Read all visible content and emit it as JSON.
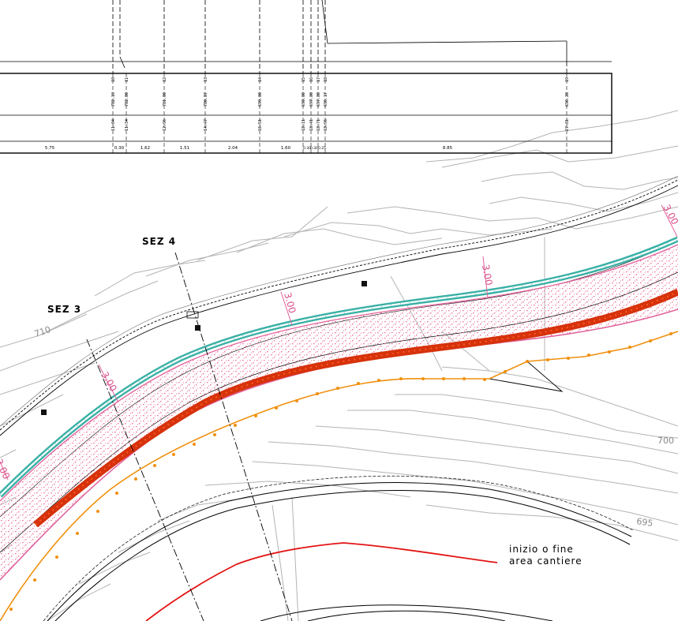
{
  "table": {
    "sections": [
      {
        "num": "10",
        "elev": "702.19",
        "prog": "11.04"
      },
      {
        "num": "11",
        "elev": "702.00",
        "prog": "11.34"
      },
      {
        "num": "12",
        "elev": "701.00",
        "prog": "12.96"
      },
      {
        "num": "13",
        "elev": "700.07",
        "prog": "14.47"
      },
      {
        "num": "14",
        "elev": "699.00",
        "prog": "16.51"
      },
      {
        "num": "15",
        "elev": "698.00",
        "prog": "18.11"
      },
      {
        "num": "16",
        "elev": "697.80",
        "prog": "18.41"
      },
      {
        "num": "17",
        "elev": "697.80",
        "prog": "18.71"
      },
      {
        "num": "18",
        "elev": "696.17",
        "prog": "18.96"
      },
      {
        "num": "19",
        "elev": "696.28",
        "prog": "27.81"
      }
    ],
    "distances": [
      "5.75",
      "0.30",
      "1.62",
      "1.51",
      "2.04",
      "1.60",
      "0.30",
      "0.30",
      "0.25",
      "8.85"
    ]
  },
  "labels": {
    "sez4": "SEZ 4",
    "sez3": "SEZ 3",
    "contour_710": "710",
    "contour_700": "700",
    "contour_695": "695",
    "dim1": "3.00",
    "dim2": "3.00",
    "dim3": "3.00",
    "dim4": "3.00",
    "dim5": "3.00",
    "legend_line1": "inizio o fine",
    "legend_line2": "area cantiere"
  },
  "colors": {
    "channel_outline": "#e0609a",
    "channel_fill_dots": "#ec6d97",
    "axis": "#d6320c",
    "edge_teal": "#3ab0a6",
    "orange_line": "#f0900e",
    "red_boundary": "#e31414",
    "contours": "#b4b4b4"
  }
}
